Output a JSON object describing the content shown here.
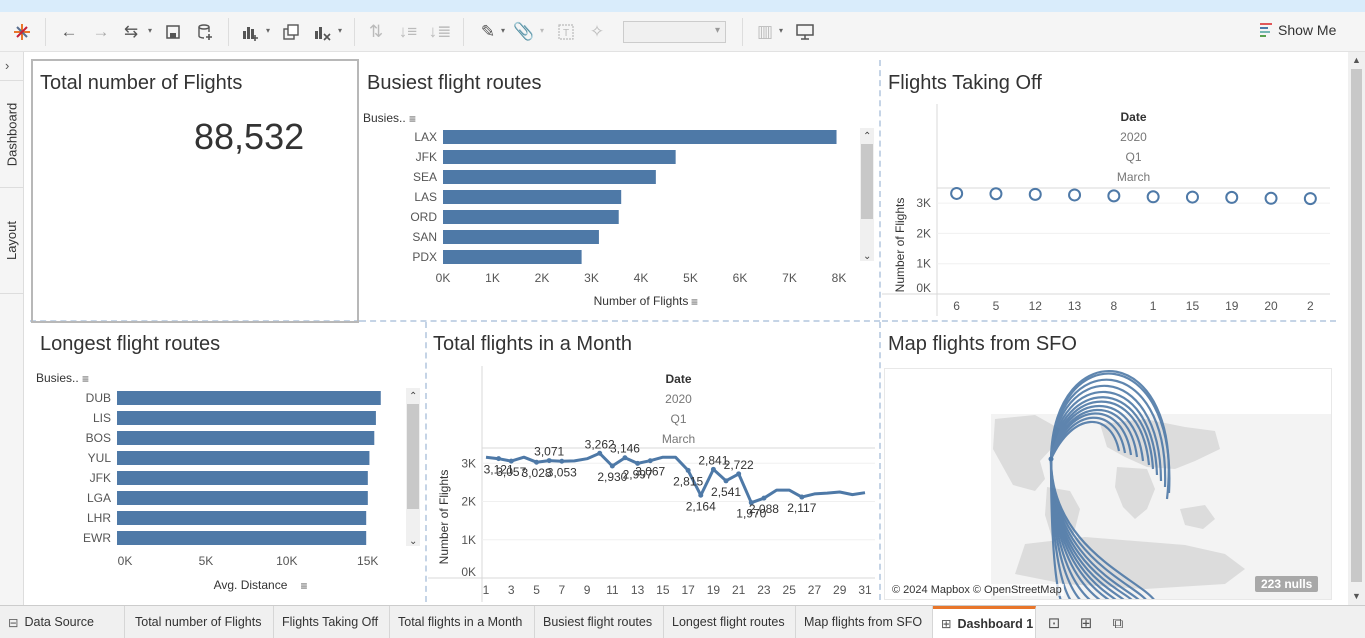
{
  "toolbar": {
    "show_me_label": "Show Me"
  },
  "sidebar": {
    "tab_dashboard": "Dashboard",
    "tab_layout": "Layout"
  },
  "kpi": {
    "title": "Total number of Flights",
    "value": "88,532"
  },
  "busiest": {
    "title": "Busiest flight routes",
    "row_header": "Busies..",
    "xlabel": "Number of Flights",
    "ticks": [
      "0K",
      "1K",
      "2K",
      "3K",
      "4K",
      "5K",
      "6K",
      "7K",
      "8K"
    ]
  },
  "takeoff": {
    "title": "Flights Taking Off",
    "header": [
      "Date",
      "2020",
      "Q1",
      "March"
    ],
    "ylabel": "Number of Flights",
    "yticks": [
      "3K",
      "2K",
      "1K",
      "0K"
    ]
  },
  "longest": {
    "title": "Longest flight routes",
    "row_header": "Busies..",
    "xlabel": "Avg. Distance",
    "ticks": [
      "0K",
      "5K",
      "10K",
      "15K"
    ]
  },
  "monthly": {
    "title": "Total flights in a Month",
    "header": [
      "Date",
      "2020",
      "Q1",
      "March"
    ],
    "ylabel": "Number of Flights",
    "yticks": [
      "3K",
      "2K",
      "1K",
      "0K"
    ]
  },
  "map": {
    "title": "Map flights from SFO",
    "attribution": "© 2024 Mapbox © OpenStreetMap",
    "nulls": "223 nulls"
  },
  "tabs": [
    {
      "label": "Data Source"
    },
    {
      "label": "Total number of Flights"
    },
    {
      "label": "Flights Taking Off"
    },
    {
      "label": "Total flights in a Month"
    },
    {
      "label": "Busiest flight routes"
    },
    {
      "label": "Longest flight routes"
    },
    {
      "label": "Map flights from SFO"
    },
    {
      "label": "Dashboard 1"
    }
  ],
  "colors": {
    "bar": "#4e79a7",
    "accent_tab": "#e8762b"
  },
  "chart_data": [
    {
      "type": "bar",
      "orientation": "horizontal",
      "title": "Busiest flight routes",
      "xlabel": "Number of Flights",
      "categories": [
        "LAX",
        "JFK",
        "SEA",
        "LAS",
        "ORD",
        "SAN",
        "PDX"
      ],
      "values": [
        7950,
        4700,
        4300,
        3600,
        3550,
        3150,
        2800
      ],
      "xlim": [
        0,
        8000
      ]
    },
    {
      "type": "scatter",
      "title": "Flights Taking Off",
      "ylabel": "Number of Flights",
      "categories": [
        "6",
        "5",
        "12",
        "13",
        "8",
        "1",
        "15",
        "19",
        "20",
        "2"
      ],
      "values": [
        3320,
        3310,
        3290,
        3270,
        3240,
        3210,
        3200,
        3190,
        3160,
        3150
      ],
      "ylim": [
        0,
        3500
      ]
    },
    {
      "type": "bar",
      "orientation": "horizontal",
      "title": "Longest flight routes",
      "xlabel": "Avg. Distance",
      "categories": [
        "DUB",
        "LIS",
        "BOS",
        "YUL",
        "JFK",
        "LGA",
        "LHR",
        "EWR"
      ],
      "values": [
        16300,
        16000,
        15900,
        15600,
        15500,
        15500,
        15400,
        15400
      ],
      "xlim": [
        0,
        16500
      ]
    },
    {
      "type": "line",
      "title": "Total flights in a Month",
      "ylabel": "Number of Flights",
      "x": [
        1,
        2,
        3,
        4,
        5,
        6,
        7,
        8,
        9,
        10,
        11,
        12,
        13,
        14,
        15,
        16,
        17,
        18,
        19,
        20,
        21,
        22,
        23,
        24,
        25,
        26,
        27,
        28,
        29,
        30,
        31
      ],
      "xticks": [
        "1",
        "3",
        "5",
        "7",
        "9",
        "11",
        "13",
        "15",
        "17",
        "19",
        "21",
        "23",
        "25",
        "27",
        "29",
        "31"
      ],
      "values": [
        3160,
        3121,
        3057,
        3160,
        3028,
        3071,
        3053,
        3062,
        3120,
        3262,
        2930,
        3146,
        2997,
        3067,
        3160,
        3160,
        2815,
        2164,
        2841,
        2541,
        2722,
        1970,
        2088,
        2300,
        2300,
        2117,
        2200,
        2220,
        2250,
        2180,
        2230
      ],
      "ylim": [
        0,
        3400
      ],
      "data_labels": [
        {
          "x": 2,
          "label": "3,121"
        },
        {
          "x": 3,
          "label": "3,057"
        },
        {
          "x": 5,
          "label": "3,028"
        },
        {
          "x": 6,
          "label": "3,071"
        },
        {
          "x": 7,
          "label": "3,053"
        },
        {
          "x": 10,
          "label": "3,262"
        },
        {
          "x": 11,
          "label": "2,930"
        },
        {
          "x": 12,
          "label": "3,146"
        },
        {
          "x": 13,
          "label": "2,997"
        },
        {
          "x": 14,
          "label": "3,067"
        },
        {
          "x": 17,
          "label": "2,815"
        },
        {
          "x": 18,
          "label": "2,164"
        },
        {
          "x": 19,
          "label": "2,841"
        },
        {
          "x": 20,
          "label": "2,541"
        },
        {
          "x": 21,
          "label": "2,722"
        },
        {
          "x": 22,
          "label": "1,970"
        },
        {
          "x": 23,
          "label": "2,088"
        },
        {
          "x": 26,
          "label": "2,117"
        }
      ]
    }
  ]
}
